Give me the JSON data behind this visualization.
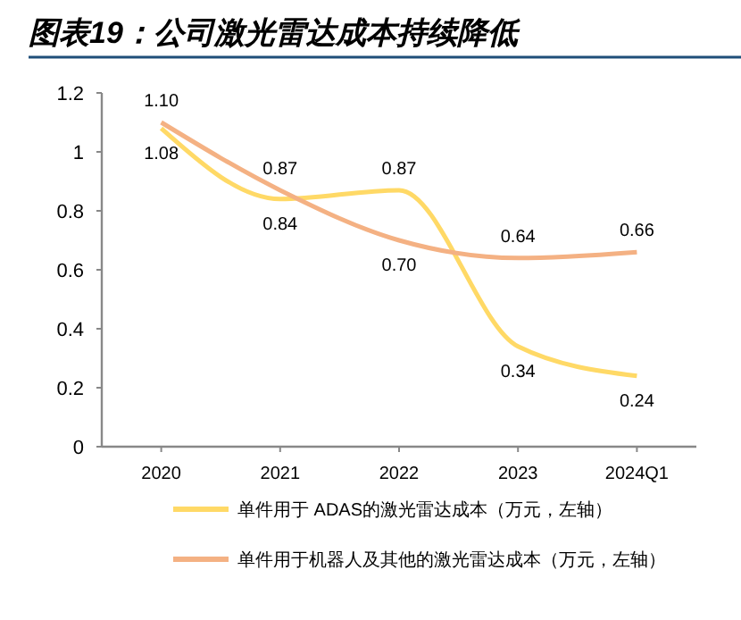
{
  "chart_data": {
    "type": "line",
    "title": "图表19：公司激光雷达成本持续降低",
    "categories": [
      "2020",
      "2021",
      "2022",
      "2023",
      "2024Q1"
    ],
    "series": [
      {
        "name": "单件用于 ADAS的激光雷达成本（万元，左轴）",
        "color": "#ffd966",
        "values": [
          1.08,
          0.84,
          0.87,
          0.34,
          0.24
        ],
        "value_labels": [
          "1.08",
          "0.84",
          "0.87",
          "0.34",
          "0.24"
        ]
      },
      {
        "name": "单件用于机器人及其他的激光雷达成本（万元，左轴）",
        "color": "#f4b183",
        "values": [
          1.1,
          0.87,
          0.7,
          0.64,
          0.66
        ],
        "value_labels": [
          "1.10",
          "0.87",
          "0.70",
          "0.64",
          "0.66"
        ]
      }
    ],
    "ylim": [
      0,
      1.2
    ],
    "yticks": [
      0,
      0.2,
      0.4,
      0.6,
      0.8,
      1,
      1.2
    ],
    "grid": false,
    "legend": "bottom",
    "marker": "none",
    "line_style": "solid"
  }
}
